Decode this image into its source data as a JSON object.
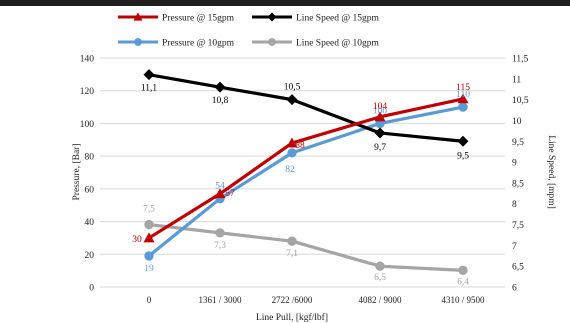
{
  "chart_data": {
    "type": "line",
    "title": "",
    "xlabel": "Line Pull, [kgf/lbf]",
    "ylabel": "Pressure, [Bar]",
    "y2label": "Line Speed, [mpm]",
    "categories": [
      "0",
      "1361 / 3000",
      "2722 /6000",
      "4082 / 9000",
      "4310 / 9500"
    ],
    "ylim": [
      0,
      140
    ],
    "y_ticks": [
      "0",
      "20",
      "40",
      "60",
      "80",
      "100",
      "120",
      "140"
    ],
    "y2lim": [
      6,
      11.5
    ],
    "y2_ticks": [
      "6",
      "6,5",
      "7",
      "7,5",
      "8",
      "8,5",
      "9",
      "9,5",
      "10",
      "10,5",
      "11",
      "11,5"
    ],
    "grid": true,
    "legend_position": "top",
    "series": [
      {
        "name": "Pressure @ 15gpm",
        "axis": "left",
        "color": "#c00000",
        "marker": "triangle",
        "values": [
          30,
          57,
          88,
          104,
          115
        ],
        "labels": [
          "30",
          "57",
          "88",
          "104",
          "115"
        ]
      },
      {
        "name": "Line Speed @ 15gpm",
        "axis": "right",
        "color": "#000000",
        "marker": "diamond",
        "values": [
          11.1,
          10.8,
          10.5,
          9.7,
          9.5
        ],
        "labels": [
          "11,1",
          "10,8",
          "10,5",
          "9,7",
          "9,5"
        ]
      },
      {
        "name": "Pressure @ 10gpm",
        "axis": "left",
        "color": "#5b9bd5",
        "marker": "circle",
        "values": [
          19,
          54,
          82,
          100,
          110
        ],
        "labels": [
          "19",
          "54",
          "82",
          "100",
          "110"
        ]
      },
      {
        "name": "Line Speed @ 10gpm",
        "axis": "right",
        "color": "#a5a5a5",
        "marker": "circle",
        "values": [
          7.5,
          7.3,
          7.1,
          6.5,
          6.4
        ],
        "labels": [
          "7,5",
          "7,3",
          "7,1",
          "6,5",
          "6,4"
        ]
      }
    ]
  }
}
